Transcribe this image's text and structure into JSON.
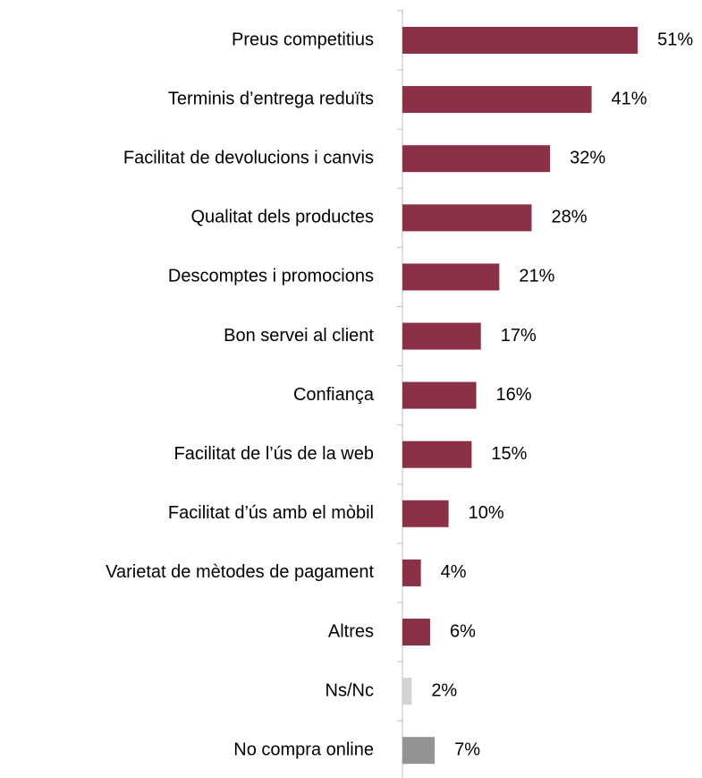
{
  "chart_data": {
    "type": "bar",
    "orientation": "horizontal",
    "categories": [
      "Preus competitius",
      "Terminis d’entrega reduïts",
      "Facilitat de devolucions i canvis",
      "Qualitat dels productes",
      "Descomptes i promocions",
      "Bon servei al client",
      "Confiança",
      "Facilitat de l’ús de la web",
      "Facilitat d’ús amb el mòbil",
      "Varietat de mètodes de pagament",
      "Altres",
      "Ns/Nc",
      "No compra online"
    ],
    "values": [
      51,
      41,
      32,
      28,
      21,
      17,
      16,
      15,
      10,
      4,
      6,
      2,
      7
    ],
    "value_labels": [
      "51%",
      "41%",
      "32%",
      "28%",
      "21%",
      "17%",
      "16%",
      "15%",
      "10%",
      "4%",
      "6%",
      "2%",
      "7%"
    ],
    "colors": [
      "#8b3147",
      "#8b3147",
      "#8b3147",
      "#8b3147",
      "#8b3147",
      "#8b3147",
      "#8b3147",
      "#8b3147",
      "#8b3147",
      "#8b3147",
      "#8b3147",
      "#d3d3d3",
      "#939393"
    ],
    "xlim": [
      0,
      60
    ]
  }
}
